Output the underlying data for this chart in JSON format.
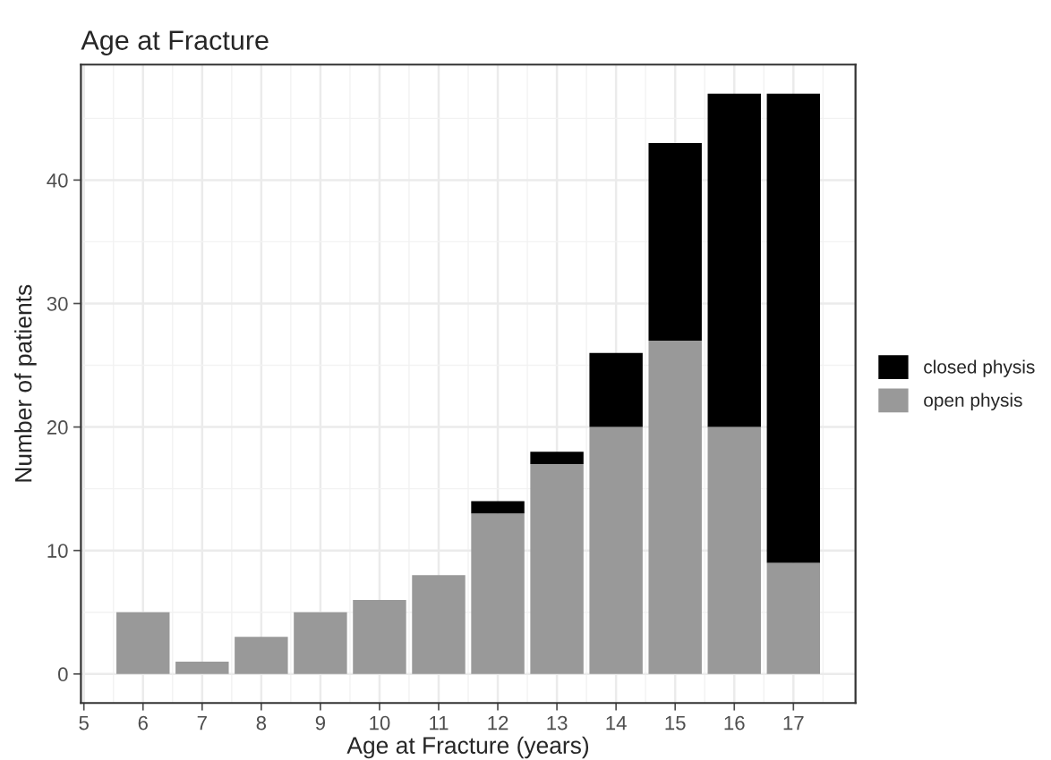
{
  "chart_data": {
    "type": "bar",
    "stacked": true,
    "title": "Age at Fracture",
    "xlabel": "Age at Fracture (years)",
    "ylabel": "Number of patients",
    "x": [
      6,
      7,
      8,
      9,
      10,
      11,
      12,
      13,
      14,
      15,
      16,
      17
    ],
    "series": [
      {
        "name": "open physis",
        "color": "#999999",
        "values": [
          5,
          1,
          3,
          5,
          6,
          8,
          13,
          17,
          20,
          27,
          20,
          9
        ]
      },
      {
        "name": "closed physis",
        "color": "#000000",
        "values": [
          0,
          0,
          0,
          0,
          0,
          0,
          1,
          1,
          6,
          16,
          27,
          38
        ]
      }
    ],
    "xlim": [
      4.95,
      18.05
    ],
    "xticks": [
      5,
      6,
      7,
      8,
      9,
      10,
      11,
      12,
      13,
      14,
      15,
      16,
      17
    ],
    "ylim": [
      -2.35,
      49.35
    ],
    "yticks": [
      0,
      10,
      20,
      30,
      40
    ],
    "grid": true,
    "legend": "right"
  }
}
